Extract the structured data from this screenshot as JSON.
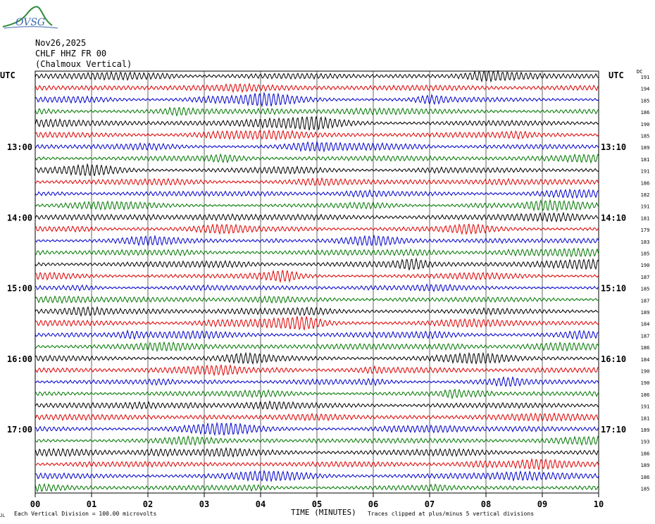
{
  "logo": {
    "text": "OVSG"
  },
  "header": {
    "date": "Nov26,2025",
    "channel": "CHLF HHZ FR 00",
    "station": "(Chalmoux Vertical)"
  },
  "utc_left": "UTC",
  "utc_right": "UTC",
  "dc_label": "DC",
  "footer": {
    "scale": "Each Vertical Division =  100.00 microvolts",
    "xlabel": "TIME (MINUTES)",
    "clip_note": "Traces clipped at plus/minus 5 vertical divisions",
    "corner_mark": "JL"
  },
  "chart_data": {
    "type": "line",
    "xlabel": "TIME (MINUTES)",
    "x_ticks": [
      "00",
      "01",
      "02",
      "03",
      "04",
      "05",
      "06",
      "07",
      "08",
      "09",
      "10"
    ],
    "xlim": [
      0,
      10
    ],
    "left_hour_labels": [
      {
        "row": 6,
        "text": "13:00"
      },
      {
        "row": 12,
        "text": "14:00"
      },
      {
        "row": 18,
        "text": "15:00"
      },
      {
        "row": 24,
        "text": "16:00"
      },
      {
        "row": 30,
        "text": "17:00"
      }
    ],
    "right_hour_labels": [
      {
        "row": 6,
        "text": "13:10"
      },
      {
        "row": 12,
        "text": "14:10"
      },
      {
        "row": 18,
        "text": "15:10"
      },
      {
        "row": 24,
        "text": "16:10"
      },
      {
        "row": 30,
        "text": "17:10"
      }
    ],
    "trace_colors": [
      "#000000",
      "#dd0000",
      "#0000cc",
      "#007700"
    ],
    "dc_offsets": [
      191,
      194,
      185,
      186,
      190,
      185,
      189,
      181,
      191,
      186,
      182,
      191,
      181,
      179,
      183,
      185,
      190,
      187,
      185,
      187,
      189,
      184,
      187,
      186,
      184,
      190,
      190,
      186,
      191,
      181,
      189,
      193,
      186,
      189,
      186,
      185
    ],
    "grid": true,
    "trace_count": 36
  }
}
